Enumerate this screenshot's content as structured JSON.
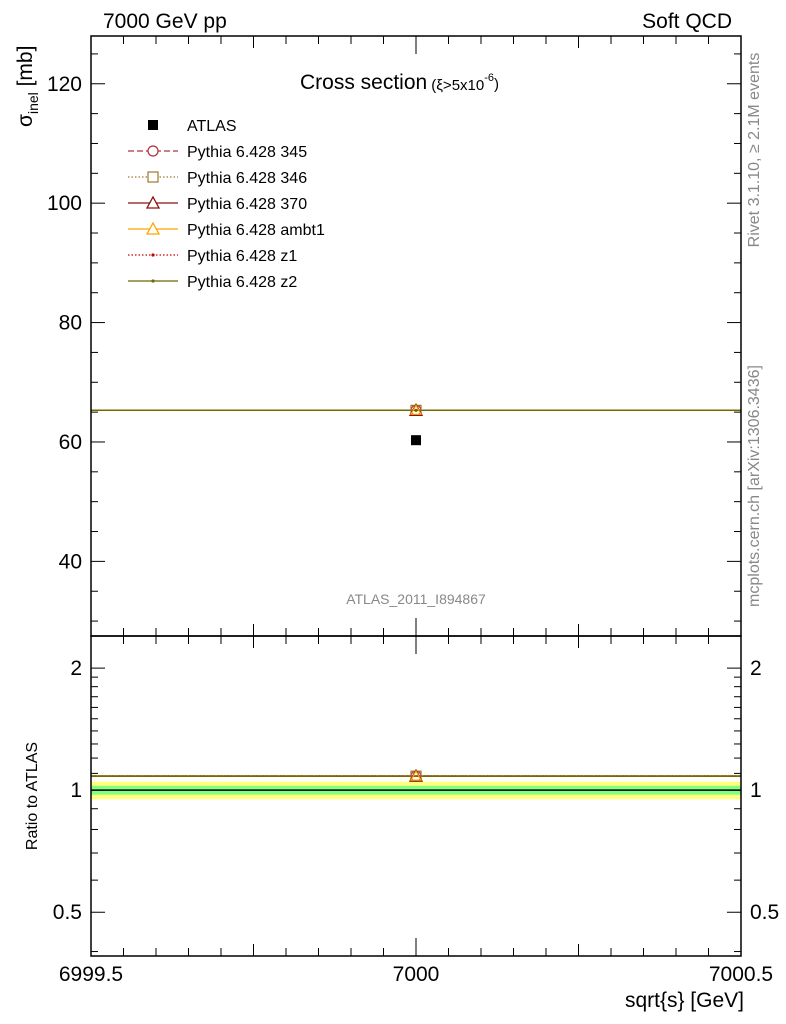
{
  "header": {
    "left": "7000 GeV pp",
    "right": "Soft QCD"
  },
  "side_text": {
    "rivet": "Rivet 3.1.10, ≥ 2.1M events",
    "source": "mcplots.cern.ch [arXiv:1306.3436]"
  },
  "watermark": "ATLAS_2011_I894867",
  "chart_data": [
    {
      "id": "main",
      "type": "scatter",
      "title": "Cross section",
      "title_suffix": "(ξ>5x10",
      "title_exp": "-6",
      "title_close": ")",
      "ylabel_symbol": "σ",
      "ylabel_sub": "inel",
      "ylabel_unit": " [mb]",
      "xlim": [
        6999.5,
        7000.5
      ],
      "ylim": [
        27.5,
        128
      ],
      "y_ticks": [
        40,
        60,
        80,
        100,
        120
      ],
      "y_tick_labels": [
        "40",
        "60",
        "80",
        "100",
        "120"
      ],
      "legend_position": "top-left",
      "legend": [
        {
          "label": "ATLAS",
          "color": "#000000",
          "marker": "square-filled",
          "line": "none"
        },
        {
          "label": "Pythia 6.428 345",
          "color": "#b03040",
          "marker": "circle-open",
          "line": "dashed"
        },
        {
          "label": "Pythia 6.428 346",
          "color": "#a07830",
          "marker": "square-open",
          "line": "dotted"
        },
        {
          "label": "Pythia 6.428 370",
          "color": "#8b1010",
          "marker": "triangle-open",
          "line": "solid"
        },
        {
          "label": "Pythia 6.428 ambt1",
          "color": "#ffa500",
          "marker": "triangle-open",
          "line": "solid"
        },
        {
          "label": "Pythia 6.428 z1",
          "color": "#cc0000",
          "marker": "dot",
          "line": "dotted"
        },
        {
          "label": "Pythia 6.428 z2",
          "color": "#6b6b00",
          "marker": "dot",
          "line": "solid"
        }
      ],
      "data": {
        "ATLAS": {
          "x": 7000,
          "y": 60.3
        },
        "Pythia 6.428 345": {
          "x": 7000,
          "y": 65.3,
          "xerr": [
            6999.5,
            7000.5
          ]
        },
        "Pythia 6.428 346": {
          "x": 7000,
          "y": 65.3,
          "xerr": [
            6999.5,
            7000.5
          ]
        },
        "Pythia 6.428 370": {
          "x": 7000,
          "y": 65.3,
          "xerr": [
            6999.5,
            7000.5
          ]
        },
        "Pythia 6.428 ambt1": {
          "x": 7000,
          "y": 65.3,
          "xerr": [
            6999.5,
            7000.5
          ]
        },
        "Pythia 6.428 z1": {
          "x": 7000,
          "y": 65.3,
          "xerr": [
            6999.5,
            7000.5
          ]
        },
        "Pythia 6.428 z2": {
          "x": 7000,
          "y": 65.3,
          "xerr": [
            6999.5,
            7000.5
          ]
        }
      }
    },
    {
      "id": "ratio",
      "type": "line",
      "ylabel": "Ratio to ATLAS",
      "xlabel": "sqrt{s} [GeV]",
      "xlim": [
        6999.5,
        7000.5
      ],
      "ylim": [
        0.39,
        2.4
      ],
      "y_scale": "log",
      "y_ticks": [
        0.5,
        1,
        2
      ],
      "y_tick_labels": [
        "0.5",
        "1",
        "2"
      ],
      "x_ticks": [
        6999.5,
        7000,
        7000.5
      ],
      "x_tick_labels": [
        "6999.5",
        "7000",
        "7000.5"
      ],
      "band_outer": [
        0.95,
        1.05
      ],
      "band_inner": [
        0.975,
        1.025
      ],
      "band_outer_color": "#ffff80",
      "band_inner_color": "#80ff80",
      "reference": 1,
      "series_ratio": 1.083
    }
  ]
}
